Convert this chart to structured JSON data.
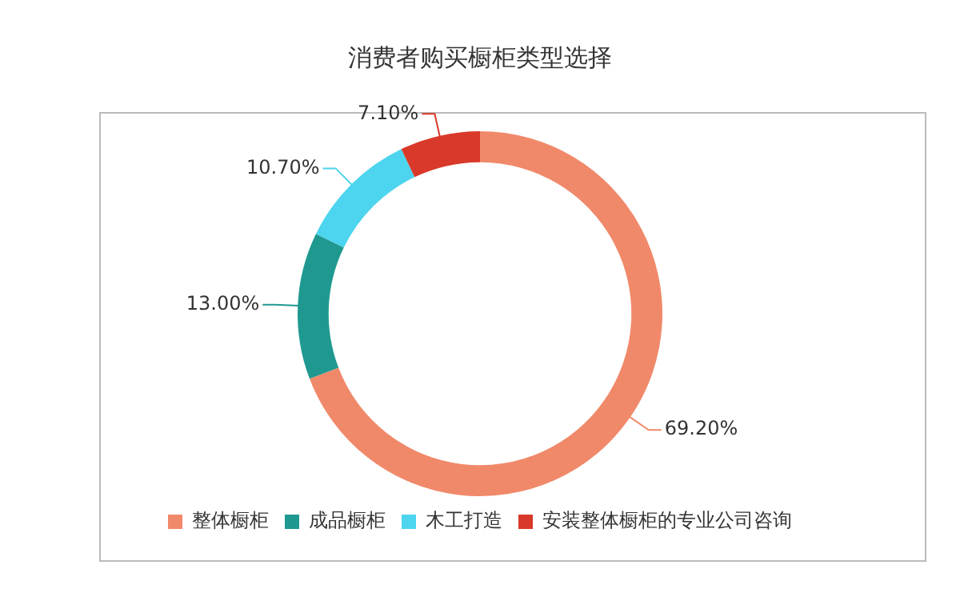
{
  "chart_data": {
    "type": "donut",
    "title": "消费者购买橱柜类型选择",
    "categories": [
      "整体橱柜",
      "成品橱柜",
      "木工打造",
      "安装整体橱柜的专业公司咨询"
    ],
    "values": [
      69.2,
      13.0,
      10.7,
      7.1
    ],
    "value_labels": [
      "69.20%",
      "13.00%",
      "10.70%",
      "7.10%"
    ],
    "colors": [
      "#f0896a",
      "#1f9990",
      "#4dd4ee",
      "#d9392a"
    ],
    "legend": "bottom"
  }
}
